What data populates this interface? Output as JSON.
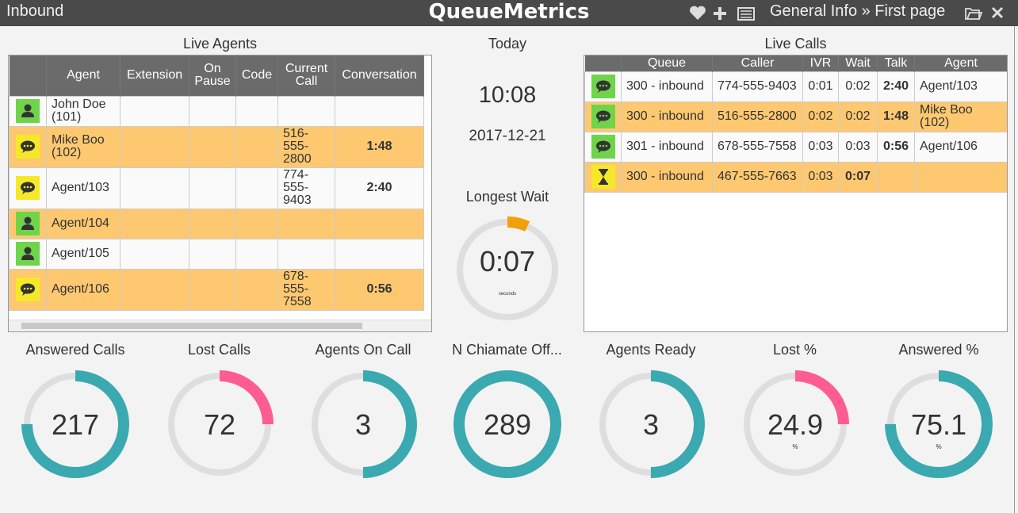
{
  "header": {
    "section": "Inbound",
    "brand": "QueueMetrics",
    "breadcrumb": "General Info » First page"
  },
  "live_agents": {
    "title": "Live Agents",
    "columns": [
      "Agent",
      "Extension",
      "On Pause",
      "Code",
      "Current Call",
      "Conversation"
    ],
    "rows": [
      {
        "agent": "John Doe (101)"
      },
      {
        "agent": "Mike Boo (102)",
        "current_call": "516-555-2800",
        "conversation": "1:48"
      },
      {
        "agent": "Agent/103",
        "current_call": "774-555-9403",
        "conversation": "2:40"
      },
      {
        "agent": "Agent/104"
      },
      {
        "agent": "Agent/105"
      },
      {
        "agent": "Agent/106",
        "current_call": "678-555-7558",
        "conversation": "0:56"
      }
    ]
  },
  "today": {
    "title": "Today",
    "time": "10:08",
    "date": "2017-12-21"
  },
  "longest_wait": {
    "title": "Longest Wait",
    "value": "0:07",
    "unit": "seconds"
  },
  "live_calls": {
    "title": "Live Calls",
    "columns": [
      "Queue",
      "Caller",
      "IVR",
      "Wait",
      "Talk",
      "Agent"
    ],
    "rows": [
      {
        "queue": "300 - inbound",
        "caller": "774-555-9403",
        "ivr": "0:01",
        "wait": "0:02",
        "talk": "2:40",
        "agent": "Agent/103"
      },
      {
        "queue": "300 - inbound",
        "caller": "516-555-2800",
        "ivr": "0:02",
        "wait": "0:02",
        "talk": "1:48",
        "agent": "Mike Boo (102)"
      },
      {
        "queue": "301 - inbound",
        "caller": "678-555-7558",
        "ivr": "0:03",
        "wait": "0:03",
        "talk": "0:56",
        "agent": "Agent/106"
      },
      {
        "queue": "300 - inbound",
        "caller": "467-555-7663",
        "ivr": "0:03",
        "wait": "0:07"
      }
    ]
  },
  "metrics": [
    {
      "label": "Answered Calls",
      "value": 217
    },
    {
      "label": "Lost Calls",
      "value": 72
    },
    {
      "label": "Agents On Call",
      "value": 3
    },
    {
      "label": "N Chiamate Off...",
      "value": 289
    },
    {
      "label": "Agents Ready",
      "value": 3
    },
    {
      "label": "Lost %",
      "value": 24.9,
      "unit": "%"
    },
    {
      "label": "Answered %",
      "value": 75.1,
      "unit": "%"
    }
  ]
}
